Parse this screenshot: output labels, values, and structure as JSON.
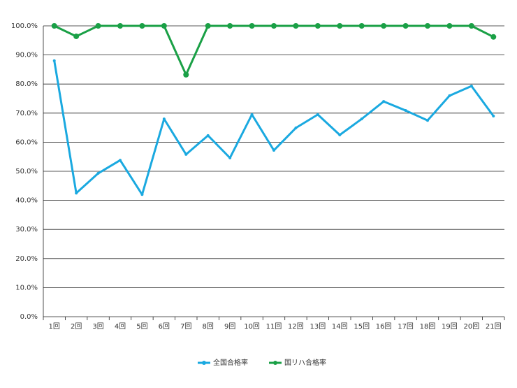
{
  "chart_data": {
    "type": "line",
    "categories": [
      "1回",
      "2回",
      "3回",
      "4回",
      "5回",
      "6回",
      "7回",
      "8回",
      "9回",
      "10回",
      "11回",
      "12回",
      "13回",
      "14回",
      "15回",
      "16回",
      "17回",
      "18回",
      "19回",
      "20回",
      "21回"
    ],
    "series": [
      {
        "name": "全国合格率",
        "color": "#1aa9e0",
        "values": [
          88,
          42.5,
          49.3,
          53.8,
          42,
          68,
          55.8,
          62.3,
          54.6,
          69.5,
          57.2,
          64.9,
          69.5,
          62.5,
          68,
          74,
          70.9,
          67.5,
          76,
          79.3,
          69
        ]
      },
      {
        "name": "国リハ合格率",
        "color": "#1aa046",
        "values": [
          100,
          96.4,
          100,
          100,
          100,
          100,
          83.2,
          100,
          100,
          100,
          100,
          100,
          100,
          100,
          100,
          100,
          100,
          100,
          100,
          100,
          96.2
        ]
      }
    ],
    "ylim": [
      0,
      100
    ],
    "yticks": [
      {
        "value": 0,
        "label": "0.0%"
      },
      {
        "value": 10,
        "label": "10.0%"
      },
      {
        "value": 20,
        "label": "20.0%"
      },
      {
        "value": 30,
        "label": "30.0%"
      },
      {
        "value": 40,
        "label": "40.0%"
      },
      {
        "value": 50,
        "label": "50.0%"
      },
      {
        "value": 60,
        "label": "60.0%"
      },
      {
        "value": 70,
        "label": "70.0%"
      },
      {
        "value": 80,
        "label": "80.0%"
      },
      {
        "value": 90,
        "label": "90.0%"
      },
      {
        "value": 100,
        "label": "100.0%"
      }
    ],
    "grid": true,
    "legend": "bottom"
  }
}
